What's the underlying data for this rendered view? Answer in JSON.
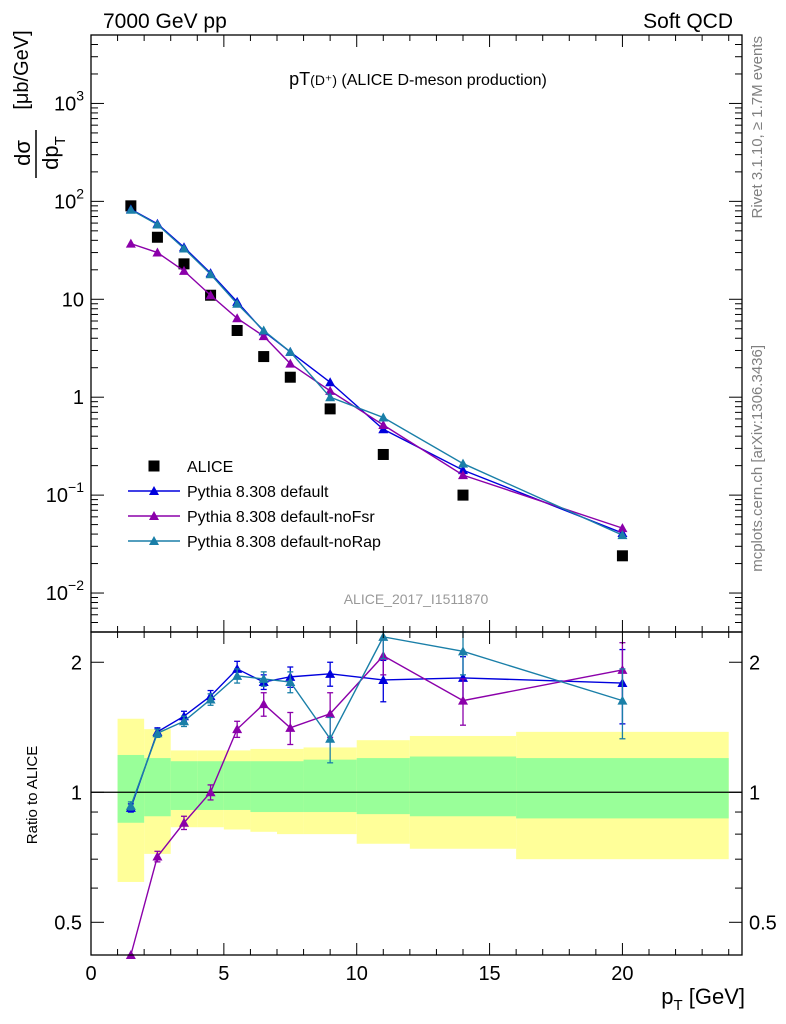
{
  "header": {
    "energy_label": "7000 GeV pp",
    "process_label": "Soft QCD"
  },
  "side_labels": {
    "rivet": "Rivet 3.1.10, ≥ 1.7M events",
    "mcplots": "mcplots.cern.ch [arXiv:1306.3436]"
  },
  "chart_data": {
    "type": "scatter",
    "title": "pT(D⁺) (ALICE D-meson production)",
    "title_main": "pT",
    "title_sub": "(D⁺)",
    "title_rest": " (ALICE D-meson production)",
    "analysis_id": "ALICE_2017_I1511870",
    "colors": {
      "data": "#000000",
      "default": "#0000dd",
      "noFsr": "#8b00aa",
      "noRap": "#1a7fa8",
      "band_inner": "#99ff99",
      "band_outer": "#ffff99"
    },
    "main": {
      "ylabel_num": "dσ",
      "ylabel_den": "dp",
      "ylabel_den_sub": "T",
      "ylabel_units": "[μb/GeV]",
      "yscale": "log",
      "ylim": [
        0.004,
        5000
      ],
      "ytick_labels": [
        {
          "value": 0.01,
          "base": "10",
          "exp": "−2"
        },
        {
          "value": 0.1,
          "base": "10",
          "exp": "−1"
        },
        {
          "value": 1,
          "base": "1",
          "exp": ""
        },
        {
          "value": 10,
          "base": "10",
          "exp": ""
        },
        {
          "value": 100,
          "base": "10",
          "exp": "2"
        },
        {
          "value": 1000,
          "base": "10",
          "exp": "3"
        }
      ],
      "series": [
        {
          "name": "ALICE",
          "style": "square",
          "color": "#000000",
          "x": [
            1.5,
            2.5,
            3.5,
            4.5,
            5.5,
            6.5,
            7.5,
            9,
            11,
            14,
            20
          ],
          "y": [
            90,
            43,
            23,
            11,
            4.8,
            2.6,
            1.6,
            0.76,
            0.26,
            0.1,
            0.024
          ]
        },
        {
          "name": "Pythia 8.308 default",
          "style": "triangle",
          "color": "#0000dd",
          "x": [
            1.5,
            2.5,
            3.5,
            4.5,
            5.5,
            6.5,
            7.5,
            9,
            11,
            14,
            20
          ],
          "y": [
            83,
            59,
            34,
            18.5,
            9.4,
            4.7,
            2.9,
            1.42,
            0.47,
            0.18,
            0.041
          ]
        },
        {
          "name": "Pythia 8.308 default-noFsr",
          "style": "triangle",
          "color": "#8b00aa",
          "x": [
            1.5,
            2.5,
            3.5,
            4.5,
            5.5,
            6.5,
            7.5,
            9,
            11,
            14,
            20
          ],
          "y": [
            37,
            30,
            19.5,
            11,
            6.4,
            4.2,
            2.2,
            1.16,
            0.52,
            0.16,
            0.046
          ]
        },
        {
          "name": "Pythia 8.308 default-noRap",
          "style": "triangle",
          "color": "#1a7fa8",
          "x": [
            1.5,
            2.5,
            3.5,
            4.5,
            5.5,
            6.5,
            7.5,
            9,
            11,
            14,
            20
          ],
          "y": [
            82,
            58,
            33,
            18,
            9.0,
            4.8,
            2.9,
            1.0,
            0.62,
            0.21,
            0.039
          ]
        }
      ]
    },
    "ratio": {
      "ylabel": "Ratio to ALICE",
      "ylim": [
        0.42,
        2.35
      ],
      "ytick_labels": [
        {
          "value": 0.5,
          "text": "0.5"
        },
        {
          "value": 1,
          "text": "1"
        },
        {
          "value": 2,
          "text": "2"
        }
      ],
      "bands": [
        {
          "x0": 1,
          "x1": 2,
          "inner": [
            0.85,
            1.22
          ],
          "outer": [
            0.62,
            1.48
          ]
        },
        {
          "x0": 2,
          "x1": 3,
          "inner": [
            0.88,
            1.2
          ],
          "outer": [
            0.72,
            1.4
          ]
        },
        {
          "x0": 3,
          "x1": 4,
          "inner": [
            0.91,
            1.18
          ],
          "outer": [
            0.83,
            1.25
          ]
        },
        {
          "x0": 4,
          "x1": 5,
          "inner": [
            0.91,
            1.18
          ],
          "outer": [
            0.83,
            1.25
          ]
        },
        {
          "x0": 5,
          "x1": 6,
          "inner": [
            0.91,
            1.18
          ],
          "outer": [
            0.82,
            1.25
          ]
        },
        {
          "x0": 6,
          "x1": 7,
          "inner": [
            0.9,
            1.18
          ],
          "outer": [
            0.81,
            1.26
          ]
        },
        {
          "x0": 7,
          "x1": 8,
          "inner": [
            0.9,
            1.18
          ],
          "outer": [
            0.8,
            1.26
          ]
        },
        {
          "x0": 8,
          "x1": 10,
          "inner": [
            0.9,
            1.19
          ],
          "outer": [
            0.8,
            1.27
          ]
        },
        {
          "x0": 10,
          "x1": 12,
          "inner": [
            0.89,
            1.2
          ],
          "outer": [
            0.76,
            1.32
          ]
        },
        {
          "x0": 12,
          "x1": 16,
          "inner": [
            0.88,
            1.21
          ],
          "outer": [
            0.74,
            1.35
          ]
        },
        {
          "x0": 16,
          "x1": 24,
          "inner": [
            0.87,
            1.2
          ],
          "outer": [
            0.7,
            1.38
          ]
        }
      ],
      "series": [
        {
          "name": "Pythia 8.308 default",
          "color": "#0000dd",
          "x": [
            1.5,
            2.5,
            3.5,
            4.5,
            5.5,
            6.5,
            7.5,
            9,
            11,
            14,
            20
          ],
          "y": [
            0.92,
            1.38,
            1.5,
            1.67,
            1.93,
            1.8,
            1.85,
            1.88,
            1.82,
            1.84,
            1.79
          ],
          "err": [
            0.02,
            0.03,
            0.04,
            0.05,
            0.08,
            0.07,
            0.1,
            0.12,
            0.2,
            0.22,
            0.35
          ]
        },
        {
          "name": "Pythia 8.308 default-noFsr",
          "color": "#8b00aa",
          "x": [
            1.5,
            2.5,
            3.5,
            4.5,
            5.5,
            6.5,
            7.5,
            9,
            11,
            14,
            20
          ],
          "y": [
            0.41,
            0.71,
            0.85,
            1.0,
            1.4,
            1.6,
            1.41,
            1.52,
            2.07,
            1.63,
            1.92
          ],
          "err": [
            0.01,
            0.02,
            0.03,
            0.04,
            0.06,
            0.1,
            0.12,
            0.18,
            0.2,
            0.2,
            0.3
          ]
        },
        {
          "name": "Pythia 8.308 default-noRap",
          "color": "#1a7fa8",
          "x": [
            1.5,
            2.5,
            3.5,
            4.5,
            5.5,
            6.5,
            7.5,
            9,
            11,
            14,
            20
          ],
          "y": [
            0.93,
            1.37,
            1.46,
            1.64,
            1.86,
            1.83,
            1.8,
            1.33,
            2.29,
            2.12,
            1.63
          ],
          "err": [
            0.02,
            0.03,
            0.04,
            0.05,
            0.07,
            0.07,
            0.1,
            0.16,
            0.25,
            0.25,
            0.3
          ]
        }
      ]
    },
    "x": {
      "label_main": "p",
      "label_sub": "T",
      "label_rest": " [GeV]",
      "xlim": [
        0,
        24.5
      ],
      "ticks": [
        0,
        5,
        10,
        15,
        20
      ],
      "tick_labels": [
        "0",
        "5",
        "10",
        "15",
        "20"
      ]
    },
    "legend": {
      "placement": "bottom-left",
      "entries": [
        {
          "label": "ALICE",
          "marker": "square",
          "color": "#000000"
        },
        {
          "label": "Pythia 8.308 default",
          "marker": "triangle",
          "color": "#0000dd"
        },
        {
          "label": "Pythia 8.308 default-noFsr",
          "marker": "triangle",
          "color": "#8b00aa"
        },
        {
          "label": "Pythia 8.308 default-noRap",
          "marker": "triangle",
          "color": "#1a7fa8"
        }
      ]
    }
  }
}
